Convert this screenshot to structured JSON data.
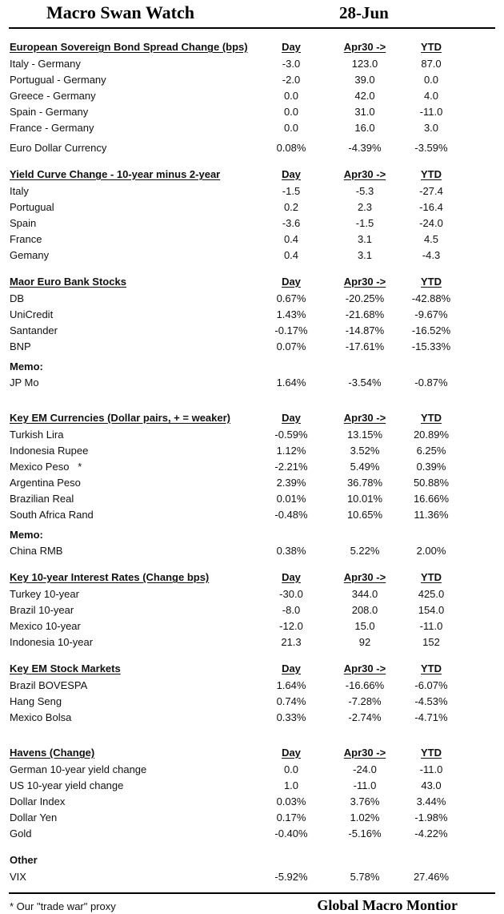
{
  "header": {
    "title": "Macro Swan Watch",
    "date": "28-Jun"
  },
  "columns": [
    "Day",
    "Apr30 ->",
    "YTD"
  ],
  "sections": [
    {
      "title": "European Sovereign Bond Spread Change (bps)",
      "show_columns": true,
      "rows": [
        {
          "label": "Italy - Germany",
          "day": "-3.0",
          "apr30": "123.0",
          "ytd": "87.0"
        },
        {
          "label": "Portugual - Germany",
          "day": "-2.0",
          "apr30": "39.0",
          "ytd": "0.0"
        },
        {
          "label": "Greece - Germany",
          "day": "0.0",
          "apr30": "42.0",
          "ytd": "4.0"
        },
        {
          "label": "Spain - Germany",
          "day": "0.0",
          "apr30": "31.0",
          "ytd": "-11.0"
        },
        {
          "label": "France - Germany",
          "day": "0.0",
          "apr30": "16.0",
          "ytd": "3.0"
        },
        {
          "label": "Euro Dollar Currency",
          "day": "0.08%",
          "apr30": "-4.39%",
          "ytd": "-3.59%",
          "gap_before": true
        }
      ]
    },
    {
      "title": "Yield Curve Change - 10-year minus 2-year",
      "show_columns": true,
      "rows": [
        {
          "label": "Italy",
          "day": "-1.5",
          "apr30": "-5.3",
          "ytd": "-27.4"
        },
        {
          "label": "Portugual",
          "day": "0.2",
          "apr30": "2.3",
          "ytd": "-16.4"
        },
        {
          "label": "Spain",
          "day": "-3.6",
          "apr30": "-1.5",
          "ytd": "-24.0"
        },
        {
          "label": "France",
          "day": "0.4",
          "apr30": "3.1",
          "ytd": "4.5"
        },
        {
          "label": "Gemany",
          "day": "0.4",
          "apr30": "3.1",
          "ytd": "-4.3"
        }
      ]
    },
    {
      "title": "Maor Euro Bank Stocks",
      "show_columns": true,
      "rows": [
        {
          "label": "DB",
          "day": "0.67%",
          "apr30": "-20.25%",
          "ytd": "-42.88%"
        },
        {
          "label": "UniCredit",
          "day": "1.43%",
          "apr30": "-21.68%",
          "ytd": "-9.67%"
        },
        {
          "label": "Santander",
          "day": "-0.17%",
          "apr30": "-14.87%",
          "ytd": "-16.52%"
        },
        {
          "label": "BNP",
          "day": "0.07%",
          "apr30": "-17.61%",
          "ytd": "-15.33%"
        },
        {
          "label": "Memo:",
          "type": "memo"
        },
        {
          "label": "JP Mo",
          "day": "1.64%",
          "apr30": "-3.54%",
          "ytd": "-0.87%"
        }
      ]
    },
    {
      "title": "Key EM Currencies (Dollar pairs, + = weaker)",
      "show_columns": true,
      "extra_gap": true,
      "rows": [
        {
          "label": "Turkish Lira",
          "day": "-0.59%",
          "apr30": "13.15%",
          "ytd": "20.89%"
        },
        {
          "label": "Indonesia Rupee",
          "day": "1.12%",
          "apr30": "3.52%",
          "ytd": "6.25%"
        },
        {
          "label": "Mexico Peso   *",
          "day": "-2.21%",
          "apr30": "5.49%",
          "ytd": "0.39%"
        },
        {
          "label": "Argentina Peso",
          "day": "2.39%",
          "apr30": "36.78%",
          "ytd": "50.88%"
        },
        {
          "label": "Brazilian Real",
          "day": "0.01%",
          "apr30": "10.01%",
          "ytd": "16.66%"
        },
        {
          "label": "South Africa Rand",
          "day": "-0.48%",
          "apr30": "10.65%",
          "ytd": "11.36%"
        },
        {
          "label": "Memo:",
          "type": "memo"
        },
        {
          "label": "China RMB",
          "day": "0.38%",
          "apr30": "5.22%",
          "ytd": "2.00%"
        }
      ]
    },
    {
      "title": "Key 10-year Interest Rates (Change bps)",
      "show_columns": true,
      "rows": [
        {
          "label": "Turkey 10-year",
          "day": "-30.0",
          "apr30": "344.0",
          "ytd": "425.0"
        },
        {
          "label": "Brazil 10-year",
          "day": "-8.0",
          "apr30": "208.0",
          "ytd": "154.0"
        },
        {
          "label": "Mexico 10-year",
          "day": "-12.0",
          "apr30": "15.0",
          "ytd": "-11.0"
        },
        {
          "label": "Indonesia 10-year",
          "day": "21.3",
          "apr30": "92",
          "ytd": "152"
        }
      ]
    },
    {
      "title": "Key EM Stock Markets",
      "show_columns": true,
      "rows": [
        {
          "label": "Brazil BOVESPA",
          "day": "1.64%",
          "apr30": "-16.66%",
          "ytd": "-6.07%"
        },
        {
          "label": "Hang Seng",
          "day": "0.74%",
          "apr30": "-7.28%",
          "ytd": "-4.53%"
        },
        {
          "label": "Mexico Bolsa",
          "day": "0.33%",
          "apr30": "-2.74%",
          "ytd": "-4.71%"
        }
      ]
    },
    {
      "title": "Havens (Change)",
      "show_columns": true,
      "extra_gap": true,
      "rows": [
        {
          "label": "German 10-year yield change",
          "day": "0.0",
          "apr30": "-24.0",
          "ytd": "-11.0"
        },
        {
          "label": "US 10-year yield change",
          "day": "1.0",
          "apr30": "-11.0",
          "ytd": "43.0"
        },
        {
          "label": "Dollar Index",
          "day": "0.03%",
          "apr30": "3.76%",
          "ytd": "3.44%"
        },
        {
          "label": "Dollar Yen",
          "day": "0.17%",
          "apr30": "1.02%",
          "ytd": "-1.98%"
        },
        {
          "label": "Gold",
          "day": "-0.40%",
          "apr30": "-5.16%",
          "ytd": "-4.22%"
        }
      ]
    },
    {
      "title": "Other",
      "show_columns": false,
      "underline": false,
      "rows": [
        {
          "label": "VIX",
          "day": "-5.92%",
          "apr30": "5.78%",
          "ytd": "27.46%"
        }
      ]
    }
  ],
  "footer": {
    "note": "* Our \"trade war\" proxy",
    "brand": "Global Macro Montior"
  }
}
